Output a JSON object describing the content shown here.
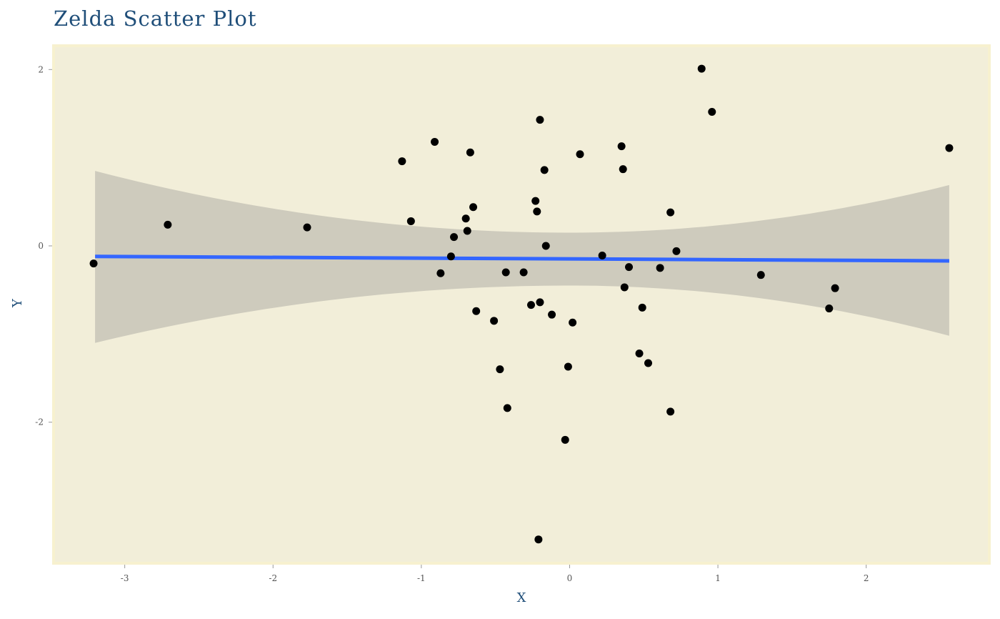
{
  "chart_data": {
    "type": "scatter",
    "title": "Zelda Scatter Plot",
    "xlabel": "X",
    "ylabel": "Y",
    "xlim": [
      -3.48,
      2.83
    ],
    "ylim": [
      -3.6,
      2.27
    ],
    "xticks": [
      -3,
      -2,
      -1,
      0,
      1,
      2
    ],
    "yticks": [
      -2,
      0,
      2
    ],
    "xtick_labels": [
      "-3",
      "-2",
      "-1",
      "0",
      "1",
      "2"
    ],
    "ytick_labels": [
      "-2",
      "0",
      "2"
    ],
    "grid": false,
    "legend": "none",
    "colors": {
      "panel_background": "#f2eed9",
      "panel_border": "#f7f1cf",
      "points": "#000000",
      "regression_line": "#3366ff",
      "confidence_band": "#cecbbd",
      "title": "#1f4e79",
      "tick_labels": "#555555"
    },
    "regression": {
      "method": "lm",
      "x_start": -3.2,
      "x_end": 2.56,
      "y_start": -0.12,
      "y_end": -0.17,
      "band_upper_start": 0.85,
      "band_upper_min": 0.15,
      "band_upper_end": 0.69,
      "band_lower_start": -1.1,
      "band_lower_max": -0.45,
      "band_lower_end": -1.02,
      "band_pinch_x": 0.0
    },
    "points": [
      {
        "x": -3.21,
        "y": -0.2
      },
      {
        "x": -2.71,
        "y": 0.24
      },
      {
        "x": -1.77,
        "y": 0.21
      },
      {
        "x": -1.13,
        "y": 0.96
      },
      {
        "x": -1.07,
        "y": 0.28
      },
      {
        "x": -0.91,
        "y": 1.18
      },
      {
        "x": -0.87,
        "y": -0.31
      },
      {
        "x": -0.8,
        "y": -0.12
      },
      {
        "x": -0.78,
        "y": 0.1
      },
      {
        "x": -0.7,
        "y": 0.31
      },
      {
        "x": -0.69,
        "y": 0.17
      },
      {
        "x": -0.67,
        "y": 1.06
      },
      {
        "x": -0.65,
        "y": 0.44
      },
      {
        "x": -0.63,
        "y": -0.74
      },
      {
        "x": -0.51,
        "y": -0.85
      },
      {
        "x": -0.47,
        "y": -1.4
      },
      {
        "x": -0.43,
        "y": -0.3
      },
      {
        "x": -0.42,
        "y": -1.84
      },
      {
        "x": -0.31,
        "y": -0.3
      },
      {
        "x": -0.26,
        "y": -0.67
      },
      {
        "x": -0.23,
        "y": 0.51
      },
      {
        "x": -0.22,
        "y": 0.39
      },
      {
        "x": -0.21,
        "y": -3.33
      },
      {
        "x": -0.2,
        "y": -0.64
      },
      {
        "x": -0.2,
        "y": 1.43
      },
      {
        "x": -0.17,
        "y": 0.86
      },
      {
        "x": -0.16,
        "y": 0.0
      },
      {
        "x": -0.12,
        "y": -0.78
      },
      {
        "x": -0.03,
        "y": -2.2
      },
      {
        "x": -0.01,
        "y": -1.37
      },
      {
        "x": 0.02,
        "y": -0.87
      },
      {
        "x": 0.07,
        "y": 1.04
      },
      {
        "x": 0.22,
        "y": -0.11
      },
      {
        "x": 0.35,
        "y": 1.13
      },
      {
        "x": 0.36,
        "y": 0.87
      },
      {
        "x": 0.37,
        "y": -0.47
      },
      {
        "x": 0.4,
        "y": -0.24
      },
      {
        "x": 0.47,
        "y": -1.22
      },
      {
        "x": 0.49,
        "y": -0.7
      },
      {
        "x": 0.53,
        "y": -1.33
      },
      {
        "x": 0.61,
        "y": -0.25
      },
      {
        "x": 0.68,
        "y": 0.38
      },
      {
        "x": 0.68,
        "y": -1.88
      },
      {
        "x": 0.72,
        "y": -0.06
      },
      {
        "x": 0.89,
        "y": 2.01
      },
      {
        "x": 0.96,
        "y": 1.52
      },
      {
        "x": 1.29,
        "y": -0.33
      },
      {
        "x": 1.75,
        "y": -0.71
      },
      {
        "x": 1.79,
        "y": -0.48
      },
      {
        "x": 2.56,
        "y": 1.11
      }
    ]
  }
}
